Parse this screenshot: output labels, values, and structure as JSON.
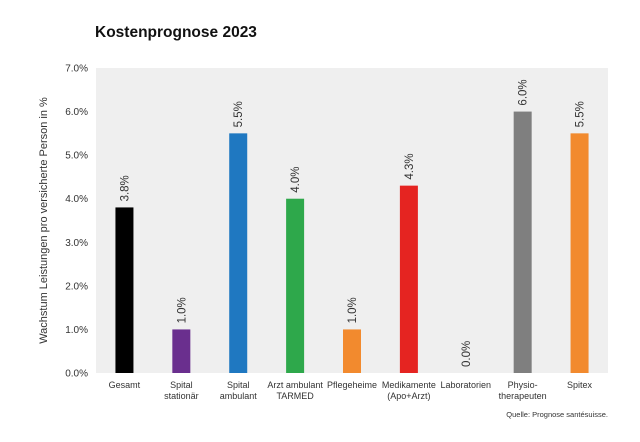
{
  "chart_data": {
    "type": "bar",
    "title": "Kostenprognose 2023",
    "ylabel": "Wachstum Leistungen pro versicherte Person in %",
    "xlabel": "",
    "ylim": [
      0,
      7
    ],
    "yticks": [
      "0.0%",
      "1.0%",
      "2.0%",
      "3.0%",
      "4.0%",
      "5.0%",
      "6.0%",
      "7.0%"
    ],
    "categories": [
      [
        "Gesamt"
      ],
      [
        "Spital",
        "stationär"
      ],
      [
        "Spital",
        "ambulant"
      ],
      [
        "Arzt ambulant",
        "TARMED"
      ],
      [
        "Pflegeheime"
      ],
      [
        "Medikamente",
        "(Apo+Arzt)"
      ],
      [
        "Laboratorien"
      ],
      [
        "Physio-",
        "therapeuten"
      ],
      [
        "Spitex"
      ]
    ],
    "values": [
      3.8,
      1.0,
      5.5,
      4.0,
      1.0,
      4.3,
      0.0,
      6.0,
      5.5
    ],
    "value_labels": [
      "3.8%",
      "1.0%",
      "5.5%",
      "4.0%",
      "1.0%",
      "4.3%",
      "0.0%",
      "6.0%",
      "5.5%"
    ],
    "colors": [
      "#000000",
      "#6a2f8e",
      "#1f78c1",
      "#2ea84b",
      "#f28a2e",
      "#e52421",
      "#bfbfbf",
      "#7f7f7f",
      "#f28a2e"
    ],
    "source": "Quelle: Prognose santésuisse.",
    "grid": false,
    "plot_background": "#efefef"
  }
}
